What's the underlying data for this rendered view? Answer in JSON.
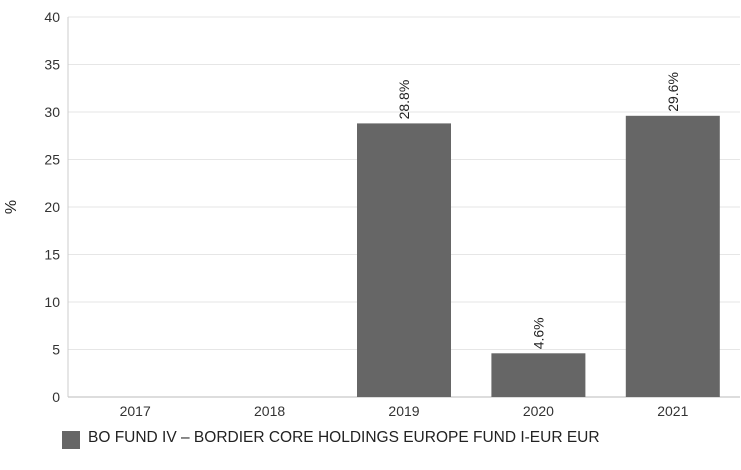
{
  "chart_data": {
    "type": "bar",
    "categories": [
      "2017",
      "2018",
      "2019",
      "2020",
      "2021"
    ],
    "series": [
      {
        "name": "BO FUND IV – BORDIER CORE HOLDINGS EUROPE FUND I-EUR EUR",
        "values": [
          null,
          null,
          28.8,
          4.6,
          29.6
        ],
        "color": "#666666"
      }
    ],
    "data_labels": [
      "",
      "",
      "28.8%",
      "4.6%",
      "29.6%"
    ],
    "ylabel": "%",
    "ylim": [
      0,
      40
    ],
    "yticks": [
      0,
      5,
      10,
      15,
      20,
      25,
      30,
      35,
      40
    ],
    "grid": true,
    "legend_position": "bottom-left"
  }
}
